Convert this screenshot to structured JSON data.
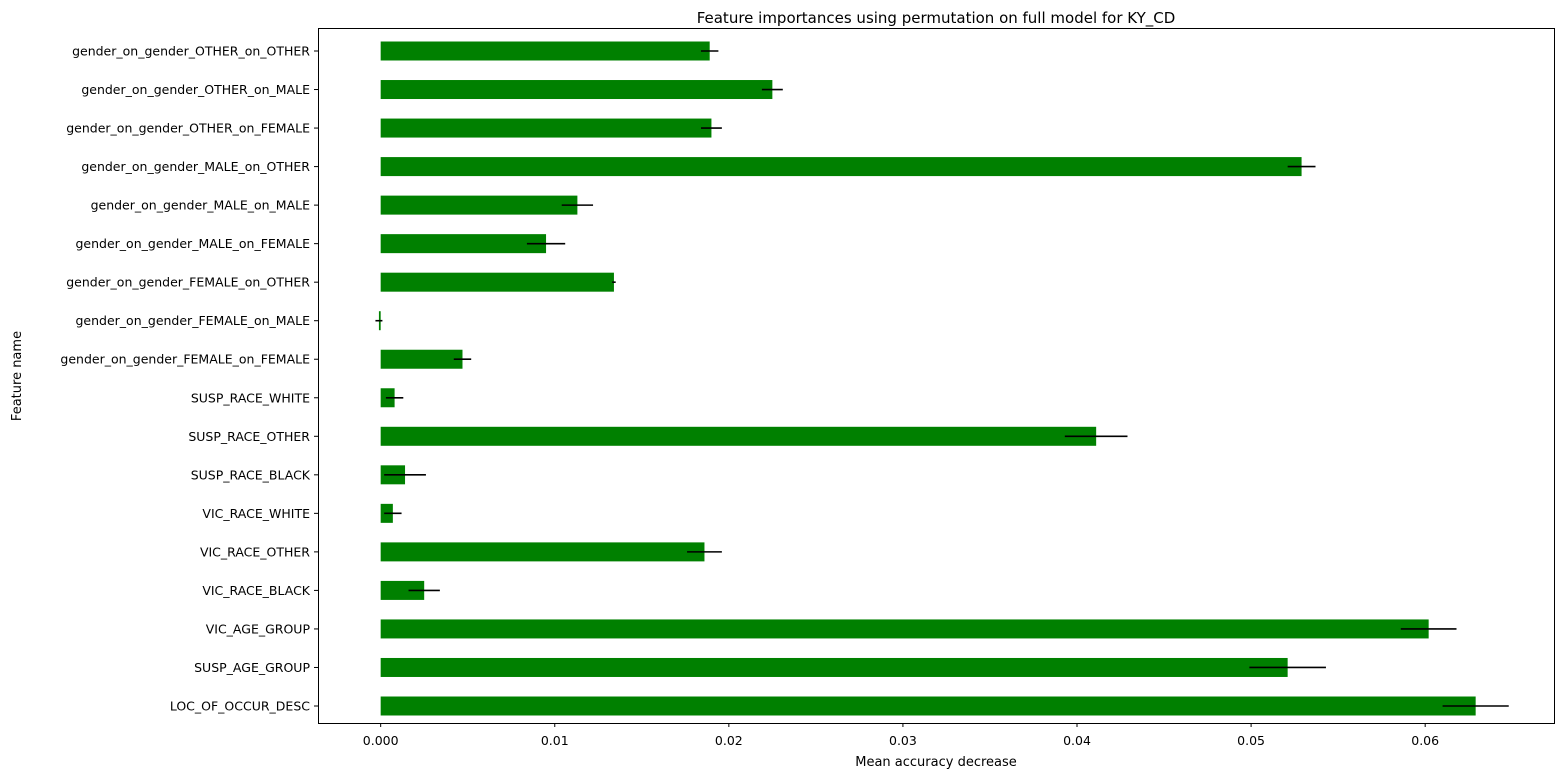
{
  "chart_data": {
    "type": "bar",
    "orientation": "horizontal",
    "title": "Feature importances using permutation on full model for KY_CD",
    "xlabel": "Mean accuracy decrease",
    "ylabel": "Feature name",
    "xlim": [
      -0.0036,
      0.0674
    ],
    "xticks": [
      "0.000",
      "0.01",
      "0.02",
      "0.03",
      "0.04",
      "0.05",
      "0.06"
    ],
    "xtick_values": [
      0,
      0.01,
      0.02,
      0.03,
      0.04,
      0.05,
      0.06
    ],
    "grid": false,
    "bar_color": "#008000",
    "error_color": "#000000",
    "categories": [
      "LOC_OF_OCCUR_DESC",
      "SUSP_AGE_GROUP",
      "VIC_AGE_GROUP",
      "VIC_RACE_BLACK",
      "VIC_RACE_OTHER",
      "VIC_RACE_WHITE",
      "SUSP_RACE_BLACK",
      "SUSP_RACE_OTHER",
      "SUSP_RACE_WHITE",
      "gender_on_gender_FEMALE_on_FEMALE",
      "gender_on_gender_FEMALE_on_MALE",
      "gender_on_gender_FEMALE_on_OTHER",
      "gender_on_gender_MALE_on_FEMALE",
      "gender_on_gender_MALE_on_MALE",
      "gender_on_gender_MALE_on_OTHER",
      "gender_on_gender_OTHER_on_FEMALE",
      "gender_on_gender_OTHER_on_MALE",
      "gender_on_gender_OTHER_on_OTHER"
    ],
    "values": [
      0.0629,
      0.0521,
      0.0602,
      0.0025,
      0.0186,
      0.0007,
      0.0014,
      0.0411,
      0.0008,
      0.0047,
      -0.0001,
      0.0134,
      0.0095,
      0.0113,
      0.0529,
      0.019,
      0.0225,
      0.0189
    ],
    "errors": [
      0.0019,
      0.0022,
      0.0016,
      0.0009,
      0.001,
      0.0005,
      0.0012,
      0.0018,
      0.0005,
      0.0005,
      0.0002,
      0.0001,
      0.0011,
      0.0009,
      0.0008,
      0.0006,
      0.0006,
      0.0005
    ]
  }
}
